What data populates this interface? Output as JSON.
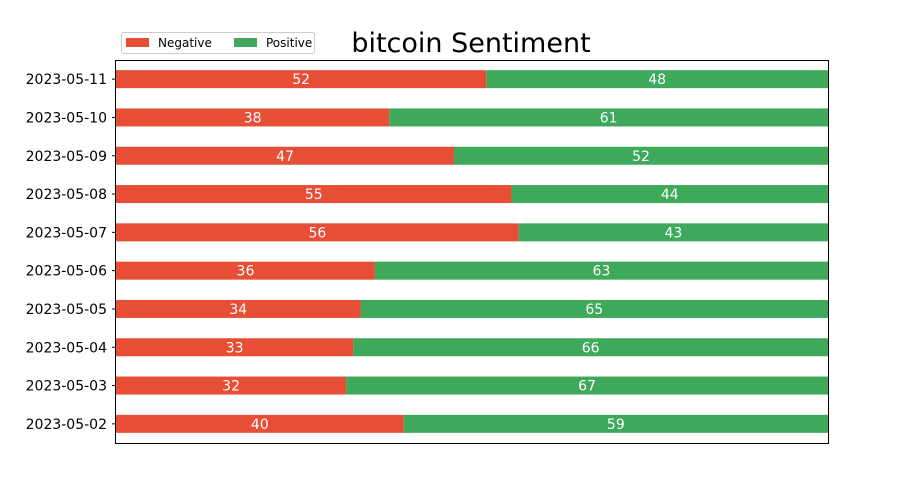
{
  "chart_data": {
    "type": "bar",
    "orientation": "horizontal",
    "stacked": true,
    "normalized": true,
    "title": "bitcoin Sentiment",
    "xlabel": "",
    "ylabel": "",
    "categories": [
      "2023-05-11",
      "2023-05-10",
      "2023-05-09",
      "2023-05-08",
      "2023-05-07",
      "2023-05-06",
      "2023-05-05",
      "2023-05-04",
      "2023-05-03",
      "2023-05-02"
    ],
    "series": [
      {
        "name": "Negative",
        "color": "#e64f36",
        "values": [
          52,
          38,
          47,
          55,
          56,
          36,
          34,
          33,
          32,
          40
        ]
      },
      {
        "name": "Positive",
        "color": "#3fa95b",
        "values": [
          48,
          61,
          52,
          44,
          43,
          63,
          65,
          66,
          67,
          59
        ]
      }
    ],
    "legend": {
      "placement": "top-left",
      "columns": 2
    },
    "grid": false,
    "x_axis_ticks_visible": false
  }
}
